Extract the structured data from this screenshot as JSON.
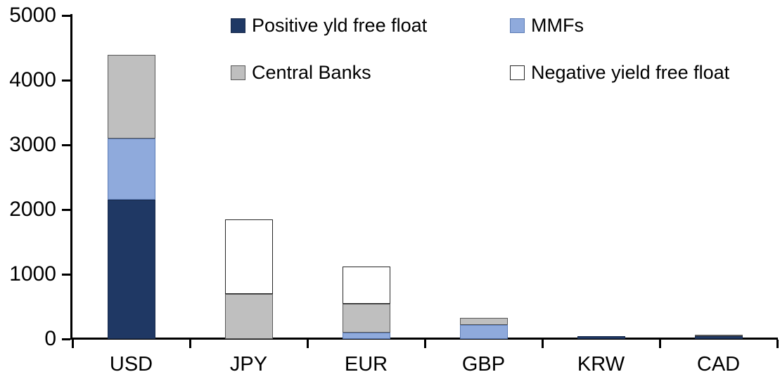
{
  "chart_data": {
    "type": "bar",
    "stacked": true,
    "title": "",
    "xlabel": "",
    "ylabel": "",
    "categories": [
      "USD",
      "JPY",
      "EUR",
      "GBP",
      "KRW",
      "CAD"
    ],
    "series": [
      {
        "name": "Positive yld free float",
        "color": "#1F3864",
        "border_color": "#17294A",
        "values": [
          2150,
          0,
          0,
          0,
          45,
          40
        ]
      },
      {
        "name": "MMFs",
        "color": "#8FAADC",
        "border_color": "#5B7BB5",
        "values": [
          950,
          0,
          100,
          220,
          0,
          0
        ]
      },
      {
        "name": "Central Banks",
        "color": "#BFBFBF",
        "border_color": "#595959",
        "values": [
          1290,
          700,
          445,
          110,
          0,
          25
        ]
      },
      {
        "name": "Negative yield free float",
        "color": "#FFFFFF",
        "border_color": "#262626",
        "values": [
          0,
          1150,
          575,
          0,
          0,
          0
        ]
      }
    ],
    "totals_by_category": [
      4390,
      1850,
      1120,
      330,
      45,
      65
    ],
    "ylim": [
      0,
      5000
    ],
    "yticks": [
      0,
      1000,
      2000,
      3000,
      4000,
      5000
    ],
    "ytick_labels": [
      "0",
      "1000",
      "2000",
      "3000",
      "4000",
      "5000"
    ],
    "grid": false,
    "legend_position": "top",
    "legend_columns": 2,
    "axis_color": "#000000",
    "background_color": "#FFFFFF"
  }
}
